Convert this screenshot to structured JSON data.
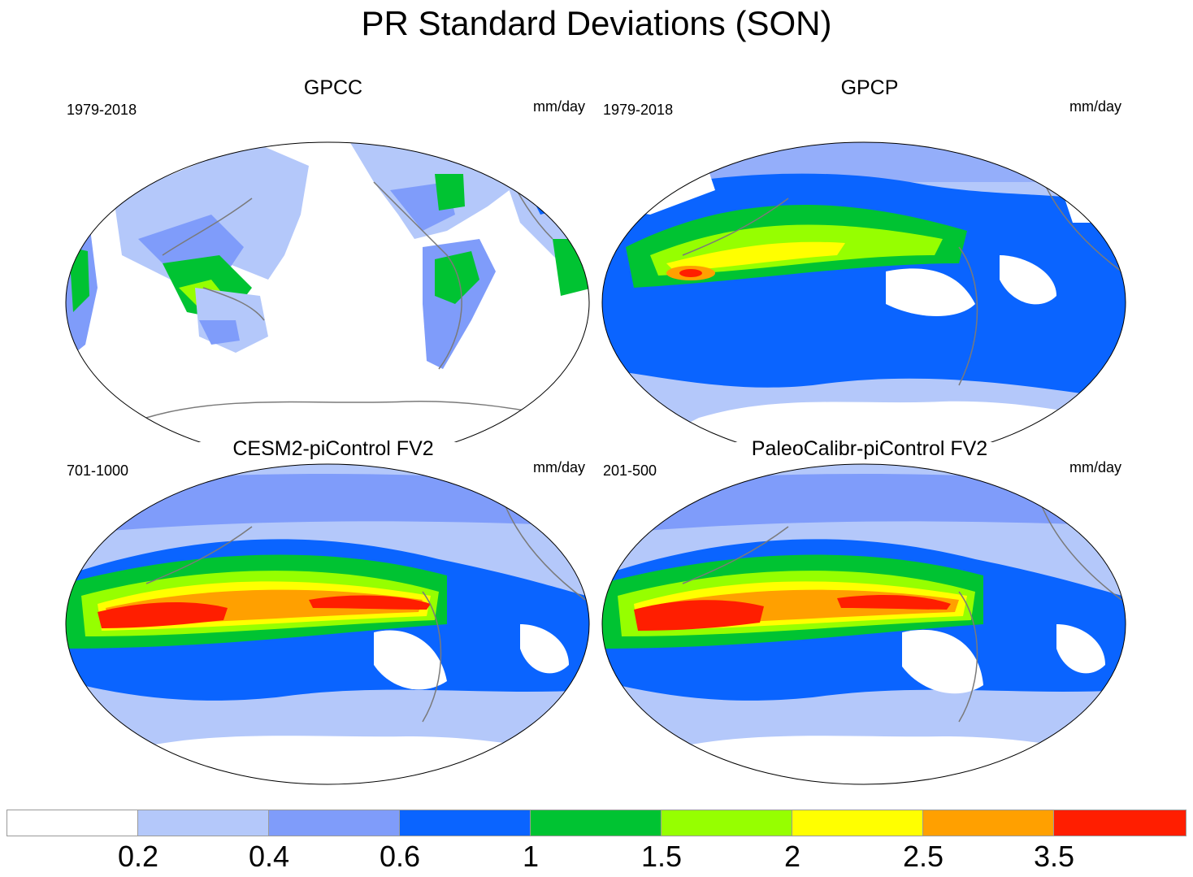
{
  "title": "PR Standard Deviations (SON)",
  "colors": {
    "levels": [
      "#ffffff",
      "#b4c8fa",
      "#7f9cfa",
      "#0a64ff",
      "#00c332",
      "#96ff00",
      "#ffff00",
      "#ffa000",
      "#ff1e00"
    ],
    "coastline": "#7a7a7a",
    "map_border": "#000000"
  },
  "panels": [
    {
      "title": "GPCC",
      "period": "1979-2018",
      "units": "mm/day",
      "map_style": "land-only"
    },
    {
      "title": "GPCP",
      "period": "1979-2018",
      "units": "mm/day",
      "map_style": "observed-global"
    },
    {
      "title": "CESM2-piControl FV2",
      "period": "701-1000",
      "units": "mm/day",
      "map_style": "model"
    },
    {
      "title": "PaleoCalibr-piControl FV2",
      "period": "201-500",
      "units": "mm/day",
      "map_style": "model"
    }
  ],
  "colorbar": {
    "tick_labels": [
      "0.2",
      "0.4",
      "0.6",
      "1",
      "1.5",
      "2",
      "2.5",
      "3.5"
    ],
    "units": "mm/day"
  }
}
